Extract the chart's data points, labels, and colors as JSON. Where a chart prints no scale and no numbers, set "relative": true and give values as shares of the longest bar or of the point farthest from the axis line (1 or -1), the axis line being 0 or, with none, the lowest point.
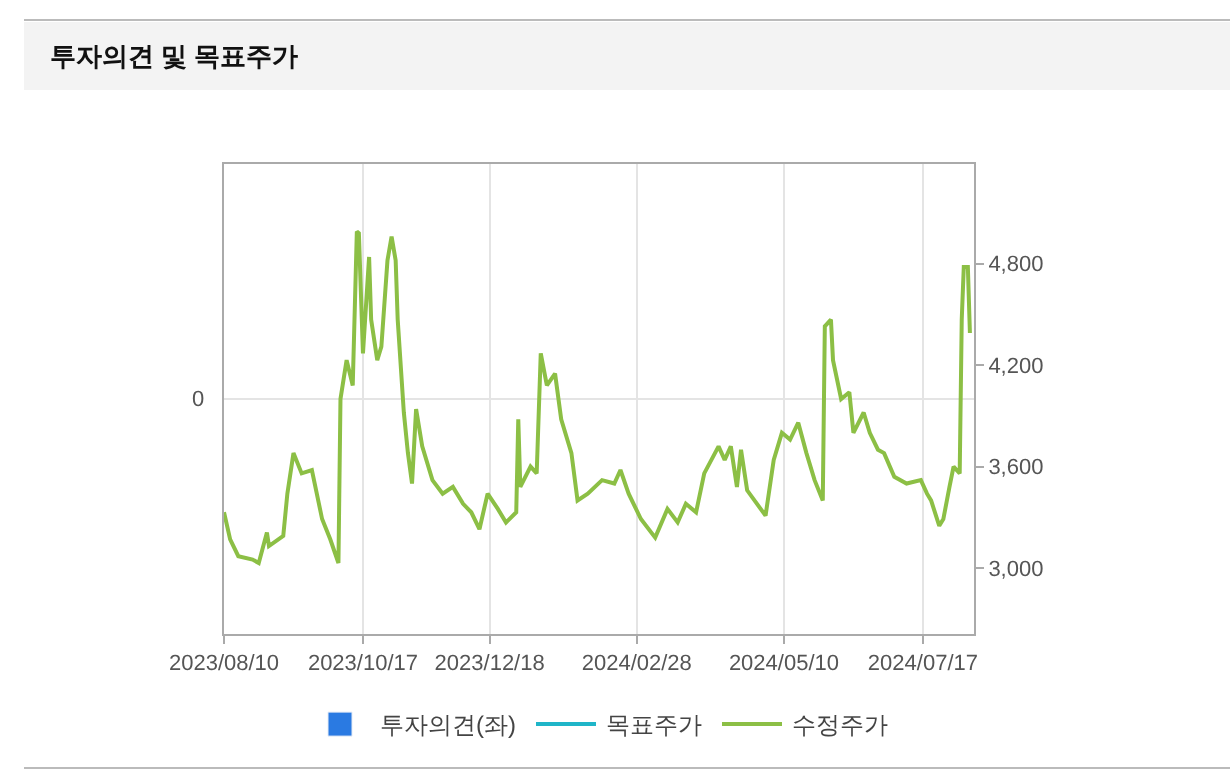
{
  "chart_data": {
    "type": "line",
    "title": "투자의견 및 목표주가",
    "xlim": [
      "2023-08-10",
      "2024-08-11"
    ],
    "xticks": [
      {
        "value": "2023-08-10",
        "label": "2023/08/10"
      },
      {
        "value": "2023-10-17",
        "label": "2023/10/17"
      },
      {
        "value": "2023-12-18",
        "label": "2023/12/18"
      },
      {
        "value": "2024-02-28",
        "label": "2024/02/28"
      },
      {
        "value": "2024-05-10",
        "label": "2024/05/10"
      },
      {
        "value": "2024-07-17",
        "label": "2024/07/17"
      }
    ],
    "annotations": [
      "0"
    ],
    "relative": true,
    "y2lim": [
      2610,
      5390
    ],
    "y2ticks": [
      {
        "value": 3000,
        "label": "3,000"
      },
      {
        "value": 3600,
        "label": "3,600"
      },
      {
        "value": 4200,
        "label": "4,200"
      },
      {
        "value": 4800,
        "label": "4,800"
      }
    ],
    "grid": true,
    "legend": "bottom",
    "marker": "none",
    "line_style": "solid",
    "series": [
      {
        "name": "투자의견(좌)",
        "type": "bar",
        "color": "#2a7ae2"
      },
      {
        "name": "목표주가",
        "color": "#1fb5c8",
        "axis": "y2"
      },
      {
        "name": "수정주가",
        "color": "#8cbf45",
        "axis": "y2",
        "x": [
          "2023-08-10",
          "2023-08-13",
          "2023-08-17",
          "2023-08-24",
          "2023-08-27",
          "2023-08-31",
          "2023-09-01",
          "2023-09-08",
          "2023-09-10",
          "2023-09-13",
          "2023-09-17",
          "2023-09-22",
          "2023-09-27",
          "2023-10-01",
          "2023-10-05",
          "2023-10-06",
          "2023-10-09",
          "2023-10-12",
          "2023-10-14",
          "2023-10-15",
          "2023-10-17",
          "2023-10-20",
          "2023-10-21",
          "2023-10-24",
          "2023-10-26",
          "2023-10-29",
          "2023-10-31",
          "2023-11-02",
          "2023-11-03",
          "2023-11-06",
          "2023-11-08",
          "2023-11-10",
          "2023-11-12",
          "2023-11-15",
          "2023-11-20",
          "2023-11-25",
          "2023-11-30",
          "2023-12-05",
          "2023-12-09",
          "2023-12-13",
          "2023-12-17",
          "2023-12-22",
          "2023-12-26",
          "2023-12-31",
          "2024-01-01",
          "2024-01-02",
          "2024-01-07",
          "2024-01-10",
          "2024-01-12",
          "2024-01-15",
          "2024-01-19",
          "2024-01-22",
          "2024-01-27",
          "2024-01-30",
          "2024-02-04",
          "2024-02-11",
          "2024-02-17",
          "2024-02-20",
          "2024-02-24",
          "2024-03-01",
          "2024-03-08",
          "2024-03-14",
          "2024-03-19",
          "2024-03-23",
          "2024-03-28",
          "2024-04-01",
          "2024-04-08",
          "2024-04-11",
          "2024-04-14",
          "2024-04-17",
          "2024-04-19",
          "2024-04-22",
          "2024-05-01",
          "2024-05-05",
          "2024-05-09",
          "2024-05-13",
          "2024-05-17",
          "2024-05-21",
          "2024-05-25",
          "2024-05-29",
          "2024-05-30",
          "2024-06-02",
          "2024-06-03",
          "2024-06-07",
          "2024-06-11",
          "2024-06-13",
          "2024-06-18",
          "2024-06-21",
          "2024-06-25",
          "2024-06-28",
          "2024-07-03",
          "2024-07-09",
          "2024-07-16",
          "2024-07-19",
          "2024-07-21",
          "2024-07-25",
          "2024-07-27",
          "2024-07-30",
          "2024-08-01",
          "2024-08-04",
          "2024-08-05",
          "2024-08-06",
          "2024-08-08",
          "2024-08-09"
        ],
        "values": [
          3330,
          3170,
          3070,
          3050,
          3030,
          3210,
          3130,
          3190,
          3440,
          3680,
          3560,
          3580,
          3290,
          3170,
          3030,
          4000,
          4230,
          4080,
          4990,
          4980,
          4270,
          4840,
          4470,
          4230,
          4310,
          4820,
          4960,
          4820,
          4470,
          3920,
          3680,
          3500,
          3940,
          3720,
          3520,
          3440,
          3480,
          3380,
          3330,
          3230,
          3440,
          3350,
          3270,
          3330,
          3880,
          3480,
          3600,
          3560,
          4270,
          4080,
          4150,
          3880,
          3680,
          3400,
          3440,
          3520,
          3500,
          3580,
          3440,
          3290,
          3180,
          3350,
          3270,
          3380,
          3330,
          3560,
          3720,
          3640,
          3720,
          3480,
          3700,
          3460,
          3310,
          3640,
          3800,
          3760,
          3860,
          3680,
          3520,
          3400,
          4430,
          4470,
          4230,
          4000,
          4040,
          3800,
          3920,
          3800,
          3700,
          3680,
          3540,
          3500,
          3520,
          3440,
          3400,
          3250,
          3290,
          3480,
          3600,
          3560,
          4470,
          4780,
          4780,
          4390
        ]
      }
    ]
  }
}
